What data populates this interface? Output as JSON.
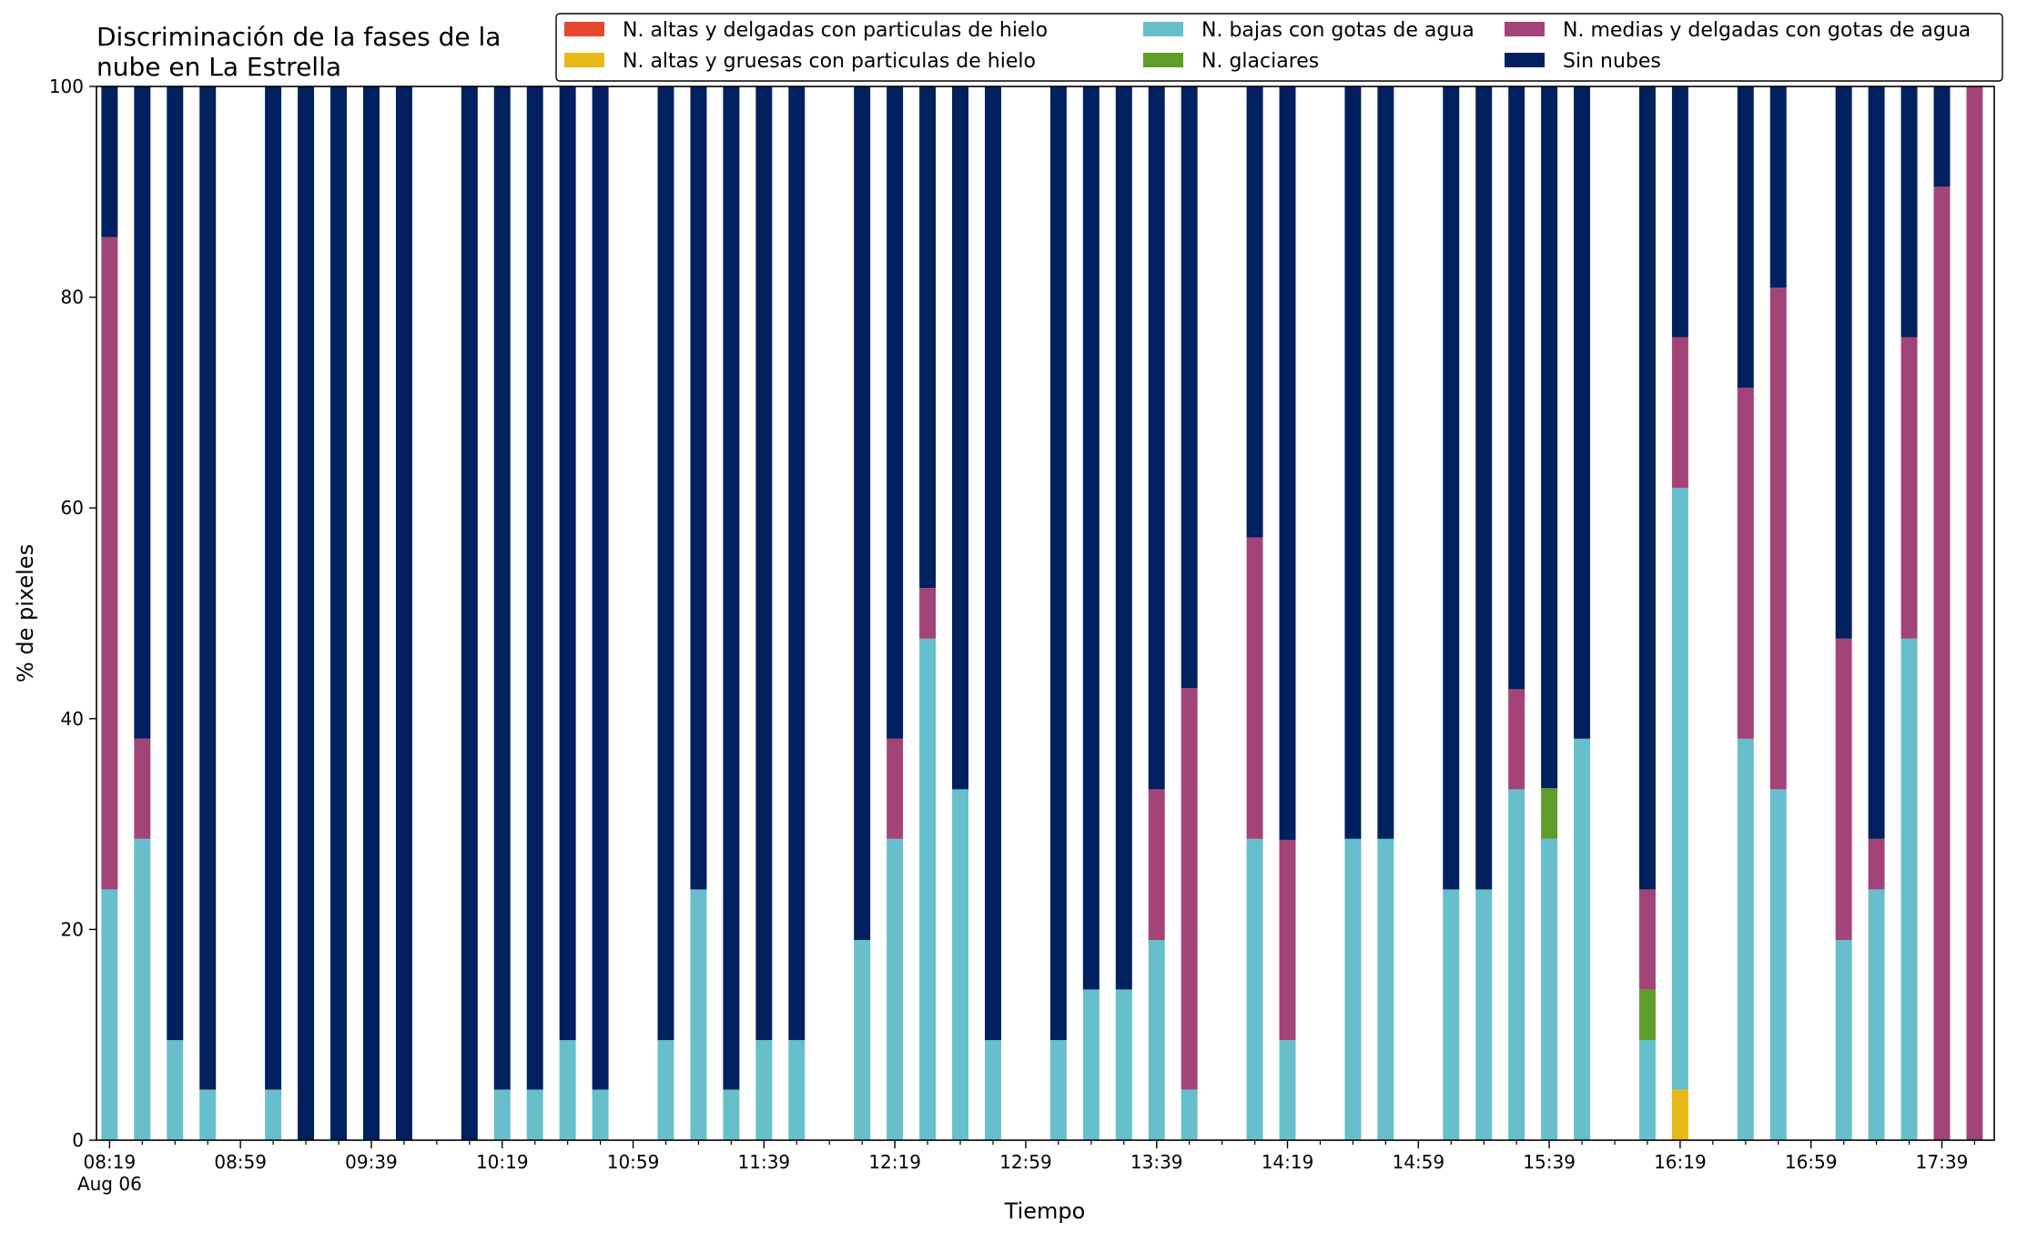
{
  "chart_data": {
    "type": "bar",
    "stacked": true,
    "title_lines": [
      "Discriminación de la fases de la",
      "nube en La Estrella"
    ],
    "xlabel": "Tiempo",
    "ylabel": "% de pixeles",
    "ylim": [
      0,
      100
    ],
    "yticks": [
      0,
      20,
      40,
      60,
      80,
      100
    ],
    "x_minutes_range": [
      495,
      1075
    ],
    "x_major_ticks": [
      {
        "minute": 499,
        "label": "08:19",
        "sub": "Aug 06"
      },
      {
        "minute": 539,
        "label": "08:59",
        "sub": ""
      },
      {
        "minute": 579,
        "label": "09:39",
        "sub": ""
      },
      {
        "minute": 619,
        "label": "10:19",
        "sub": ""
      },
      {
        "minute": 659,
        "label": "10:59",
        "sub": ""
      },
      {
        "minute": 699,
        "label": "11:39",
        "sub": ""
      },
      {
        "minute": 739,
        "label": "12:19",
        "sub": ""
      },
      {
        "minute": 779,
        "label": "12:59",
        "sub": ""
      },
      {
        "minute": 819,
        "label": "13:39",
        "sub": ""
      },
      {
        "minute": 859,
        "label": "14:19",
        "sub": ""
      },
      {
        "minute": 899,
        "label": "14:59",
        "sub": ""
      },
      {
        "minute": 939,
        "label": "15:39",
        "sub": ""
      },
      {
        "minute": 979,
        "label": "16:19",
        "sub": ""
      },
      {
        "minute": 1019,
        "label": "16:59",
        "sub": ""
      },
      {
        "minute": 1059,
        "label": "17:39",
        "sub": ""
      }
    ],
    "x_minor_tick_step_minutes": 10,
    "grid": false,
    "legend_position": "top-right",
    "series": [
      {
        "key": "aa",
        "name": "N. altas y delgadas con particulas de hielo",
        "color": "#e8472f"
      },
      {
        "key": "ag",
        "name": "N. altas y gruesas con particulas de hielo",
        "color": "#e8b817"
      },
      {
        "key": "bj",
        "name": "N. bajas con gotas de agua",
        "color": "#67bfcb"
      },
      {
        "key": "gl",
        "name": "N. glaciares",
        "color": "#5f9d2b"
      },
      {
        "key": "md",
        "name": "N. medias y delgadas con gotas de agua",
        "color": "#a34478"
      },
      {
        "key": "sn",
        "name": "Sin nubes",
        "color": "#00205f"
      }
    ],
    "legend_order": [
      "aa",
      "ag",
      "bj",
      "gl",
      "md",
      "sn"
    ],
    "bars": [
      {
        "t": "08:19",
        "minute": 499,
        "aa": 0,
        "ag": 0,
        "bj": 23.8,
        "gl": 0,
        "md": 61.9,
        "sn": 14.3
      },
      {
        "t": "08:29",
        "minute": 509,
        "aa": 0,
        "ag": 0,
        "bj": 28.6,
        "gl": 0,
        "md": 9.5,
        "sn": 61.9
      },
      {
        "t": "08:39",
        "minute": 519,
        "aa": 0,
        "ag": 0,
        "bj": 9.5,
        "gl": 0,
        "md": 0,
        "sn": 90.5
      },
      {
        "t": "08:49",
        "minute": 529,
        "aa": 0,
        "ag": 0,
        "bj": 4.8,
        "gl": 0,
        "md": 0,
        "sn": 95.2
      },
      {
        "t": "09:09",
        "minute": 549,
        "aa": 0,
        "ag": 0,
        "bj": 4.8,
        "gl": 0,
        "md": 0,
        "sn": 95.2
      },
      {
        "t": "09:19",
        "minute": 559,
        "aa": 0,
        "ag": 0,
        "bj": 0,
        "gl": 0,
        "md": 0,
        "sn": 100
      },
      {
        "t": "09:29",
        "minute": 569,
        "aa": 0,
        "ag": 0,
        "bj": 0,
        "gl": 0,
        "md": 0,
        "sn": 100
      },
      {
        "t": "09:39",
        "minute": 579,
        "aa": 0,
        "ag": 0,
        "bj": 0,
        "gl": 0,
        "md": 0,
        "sn": 100
      },
      {
        "t": "09:49",
        "minute": 589,
        "aa": 0,
        "ag": 0,
        "bj": 0,
        "gl": 0,
        "md": 0,
        "sn": 100
      },
      {
        "t": "10:09",
        "minute": 609,
        "aa": 0,
        "ag": 0,
        "bj": 0,
        "gl": 0,
        "md": 0,
        "sn": 100
      },
      {
        "t": "10:19",
        "minute": 619,
        "aa": 0,
        "ag": 0,
        "bj": 4.8,
        "gl": 0,
        "md": 0,
        "sn": 95.2
      },
      {
        "t": "10:29",
        "minute": 629,
        "aa": 0,
        "ag": 0,
        "bj": 4.8,
        "gl": 0,
        "md": 0,
        "sn": 95.2
      },
      {
        "t": "10:39",
        "minute": 639,
        "aa": 0,
        "ag": 0,
        "bj": 9.5,
        "gl": 0,
        "md": 0,
        "sn": 90.5
      },
      {
        "t": "10:49",
        "minute": 649,
        "aa": 0,
        "ag": 0,
        "bj": 4.8,
        "gl": 0,
        "md": 0,
        "sn": 95.2
      },
      {
        "t": "11:09",
        "minute": 669,
        "aa": 0,
        "ag": 0,
        "bj": 9.5,
        "gl": 0,
        "md": 0,
        "sn": 90.5
      },
      {
        "t": "11:19",
        "minute": 679,
        "aa": 0,
        "ag": 0,
        "bj": 23.8,
        "gl": 0,
        "md": 0,
        "sn": 76.2
      },
      {
        "t": "11:29",
        "minute": 689,
        "aa": 0,
        "ag": 0,
        "bj": 4.8,
        "gl": 0,
        "md": 0,
        "sn": 95.2
      },
      {
        "t": "11:39",
        "minute": 699,
        "aa": 0,
        "ag": 0,
        "bj": 9.5,
        "gl": 0,
        "md": 0,
        "sn": 90.5
      },
      {
        "t": "11:49",
        "minute": 709,
        "aa": 0,
        "ag": 0,
        "bj": 9.5,
        "gl": 0,
        "md": 0,
        "sn": 90.5
      },
      {
        "t": "12:09",
        "minute": 729,
        "aa": 0,
        "ag": 0,
        "bj": 19.0,
        "gl": 0,
        "md": 0,
        "sn": 81.0
      },
      {
        "t": "12:19",
        "minute": 739,
        "aa": 0,
        "ag": 0,
        "bj": 28.6,
        "gl": 0,
        "md": 9.5,
        "sn": 61.9
      },
      {
        "t": "12:29",
        "minute": 749,
        "aa": 0,
        "ag": 0,
        "bj": 47.6,
        "gl": 0,
        "md": 4.8,
        "sn": 47.6
      },
      {
        "t": "12:39",
        "minute": 759,
        "aa": 0,
        "ag": 0,
        "bj": 33.3,
        "gl": 0,
        "md": 0,
        "sn": 66.7
      },
      {
        "t": "12:49",
        "minute": 769,
        "aa": 0,
        "ag": 0,
        "bj": 9.5,
        "gl": 0,
        "md": 0,
        "sn": 90.5
      },
      {
        "t": "13:09",
        "minute": 789,
        "aa": 0,
        "ag": 0,
        "bj": 9.5,
        "gl": 0,
        "md": 0,
        "sn": 90.5
      },
      {
        "t": "13:19",
        "minute": 799,
        "aa": 0,
        "ag": 0,
        "bj": 14.3,
        "gl": 0,
        "md": 0,
        "sn": 85.7
      },
      {
        "t": "13:29",
        "minute": 809,
        "aa": 0,
        "ag": 0,
        "bj": 14.3,
        "gl": 0,
        "md": 0,
        "sn": 85.7
      },
      {
        "t": "13:39",
        "minute": 819,
        "aa": 0,
        "ag": 0,
        "bj": 19.0,
        "gl": 0,
        "md": 14.3,
        "sn": 66.7
      },
      {
        "t": "13:49",
        "minute": 829,
        "aa": 0,
        "ag": 0,
        "bj": 4.8,
        "gl": 0,
        "md": 38.1,
        "sn": 57.1
      },
      {
        "t": "14:09",
        "minute": 849,
        "aa": 0,
        "ag": 0,
        "bj": 28.6,
        "gl": 0,
        "md": 28.6,
        "sn": 42.8
      },
      {
        "t": "14:19",
        "minute": 859,
        "aa": 0,
        "ag": 0,
        "bj": 9.5,
        "gl": 0,
        "md": 19.0,
        "sn": 71.5
      },
      {
        "t": "14:39",
        "minute": 879,
        "aa": 0,
        "ag": 0,
        "bj": 28.6,
        "gl": 0,
        "md": 0,
        "sn": 71.4
      },
      {
        "t": "14:49",
        "minute": 889,
        "aa": 0,
        "ag": 0,
        "bj": 28.6,
        "gl": 0,
        "md": 0,
        "sn": 71.4
      },
      {
        "t": "15:09",
        "minute": 909,
        "aa": 0,
        "ag": 0,
        "bj": 23.8,
        "gl": 0,
        "md": 0,
        "sn": 76.2
      },
      {
        "t": "15:19",
        "minute": 919,
        "aa": 0,
        "ag": 0,
        "bj": 23.8,
        "gl": 0,
        "md": 0,
        "sn": 76.2
      },
      {
        "t": "15:29",
        "minute": 929,
        "aa": 0,
        "ag": 0,
        "bj": 33.3,
        "gl": 0,
        "md": 9.5,
        "sn": 57.2
      },
      {
        "t": "15:39",
        "minute": 939,
        "aa": 0,
        "ag": 0,
        "bj": 28.6,
        "gl": 4.8,
        "md": 0,
        "sn": 66.6
      },
      {
        "t": "15:49",
        "minute": 949,
        "aa": 0,
        "ag": 0,
        "bj": 38.1,
        "gl": 0,
        "md": 0,
        "sn": 61.9
      },
      {
        "t": "16:09",
        "minute": 969,
        "aa": 0,
        "ag": 0,
        "bj": 9.5,
        "gl": 4.8,
        "md": 9.5,
        "sn": 76.2
      },
      {
        "t": "16:19",
        "minute": 979,
        "aa": 0,
        "ag": 4.8,
        "bj": 57.1,
        "gl": 0,
        "md": 14.3,
        "sn": 23.8
      },
      {
        "t": "16:39",
        "minute": 999,
        "aa": 0,
        "ag": 0,
        "bj": 38.1,
        "gl": 0,
        "md": 33.3,
        "sn": 28.6
      },
      {
        "t": "16:49",
        "minute": 1009,
        "aa": 0,
        "ag": 0,
        "bj": 33.3,
        "gl": 0,
        "md": 47.6,
        "sn": 19.1
      },
      {
        "t": "17:09",
        "minute": 1029,
        "aa": 0,
        "ag": 0,
        "bj": 19.0,
        "gl": 0,
        "md": 28.6,
        "sn": 52.4
      },
      {
        "t": "17:19",
        "minute": 1039,
        "aa": 0,
        "ag": 0,
        "bj": 23.8,
        "gl": 0,
        "md": 4.8,
        "sn": 71.4
      },
      {
        "t": "17:29",
        "minute": 1049,
        "aa": 0,
        "ag": 0,
        "bj": 47.6,
        "gl": 0,
        "md": 28.6,
        "sn": 23.8
      },
      {
        "t": "17:39",
        "minute": 1059,
        "aa": 0,
        "ag": 0,
        "bj": 0,
        "gl": 0,
        "md": 90.5,
        "sn": 9.5
      },
      {
        "t": "17:49",
        "minute": 1069,
        "aa": 0,
        "ag": 0,
        "bj": 0,
        "gl": 0,
        "md": 100,
        "sn": 0
      }
    ]
  }
}
